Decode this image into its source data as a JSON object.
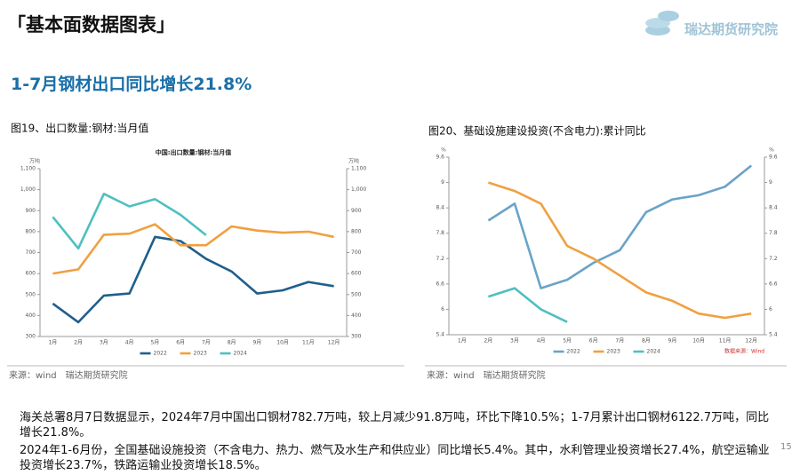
{
  "header": {
    "title": "「基本面数据图表」",
    "logo": "瑞达期货研究院"
  },
  "subtitle": "1-7月钢材出口同比增长21.8%",
  "chart_data": [
    {
      "type": "line",
      "caption": "图19、出口数量:钢材:当月值",
      "title": "中国:出口数量:钢材:当月值",
      "y_unit": "万吨",
      "y2_unit": "万吨",
      "categories": [
        "1月",
        "2月",
        "3月",
        "4月",
        "5月",
        "6月",
        "7月",
        "8月",
        "9月",
        "10月",
        "11月",
        "12月"
      ],
      "ylim": [
        300,
        1100
      ],
      "yticks": [
        300,
        400,
        500,
        600,
        700,
        800,
        900,
        {
          "value": 1000,
          "label": "1,000"
        },
        {
          "value": 1100,
          "label": "1,100"
        }
      ],
      "y2lim": [
        300,
        1100
      ],
      "y2ticks": [
        300,
        400,
        500,
        600,
        700,
        800,
        900,
        {
          "value": 1000,
          "label": "1,000"
        },
        {
          "value": 1100,
          "label": "1,100"
        }
      ],
      "series": [
        {
          "name": "2022",
          "color": "#1f5f8b",
          "values": [
            457,
            368,
            495,
            505,
            775,
            755,
            670,
            610,
            505,
            520,
            560,
            540
          ]
        },
        {
          "name": "2023",
          "color": "#f0a040",
          "values": [
            600,
            620,
            785,
            790,
            835,
            735,
            735,
            825,
            805,
            795,
            800,
            775
          ]
        },
        {
          "name": "2024",
          "color": "#4fbfc0",
          "values": [
            870,
            720,
            980,
            920,
            955,
            880,
            783,
            null,
            null,
            null,
            null,
            null
          ]
        }
      ],
      "source": "来源：wind　瑞达期货研究院"
    },
    {
      "type": "line",
      "caption": "图20、基础设施建设投资(不含电力):累计同比",
      "title": null,
      "y_unit": "%",
      "y2_unit": "%",
      "categories": [
        "1月",
        "2月",
        "3月",
        "4月",
        "5月",
        "6月",
        "7月",
        "8月",
        "9月",
        "10月",
        "11月",
        "12月"
      ],
      "ylim": [
        5.4,
        9.6
      ],
      "yticks": [
        5.4,
        6,
        6.6,
        7.2,
        7.8,
        8.4,
        9,
        9.6
      ],
      "y2lim": [
        5.4,
        9.6
      ],
      "y2ticks": [
        5.4,
        6,
        6.6,
        7.2,
        7.8,
        8.4,
        9,
        9.6
      ],
      "series": [
        {
          "name": "2022",
          "color": "#6aa3c8",
          "values": [
            null,
            8.1,
            8.5,
            6.5,
            6.7,
            7.1,
            7.4,
            8.3,
            8.6,
            8.7,
            8.9,
            9.4
          ]
        },
        {
          "name": "2023",
          "color": "#f0a040",
          "values": [
            null,
            9.0,
            8.8,
            8.5,
            7.5,
            7.2,
            6.8,
            6.4,
            6.2,
            5.9,
            5.8,
            5.9
          ]
        },
        {
          "name": "2024",
          "color": "#4fbfc0",
          "values": [
            null,
            6.3,
            6.5,
            6.0,
            5.7,
            null,
            null,
            null,
            null,
            null,
            null,
            null
          ]
        }
      ],
      "note": "数据来源：Wind",
      "source": "来源：wind　瑞达期货研究院"
    }
  ],
  "body": {
    "paragraphs": [
      "海关总署8月7日数据显示，2024年7月中国出口钢材782.7万吨，较上月减少91.8万吨，环比下降10.5%；1-7月累计出口钢材6122.7万吨，同比增长21.8%。",
      "2024年1-6月份，全国基础设施投资（不含电力、热力、燃气及水生产和供应业）同比增长5.4%。其中，水利管理业投资增长27.4%，航空运输业投资增长23.7%，铁路运输业投资增长18.5%。"
    ],
    "page_number": "15"
  }
}
